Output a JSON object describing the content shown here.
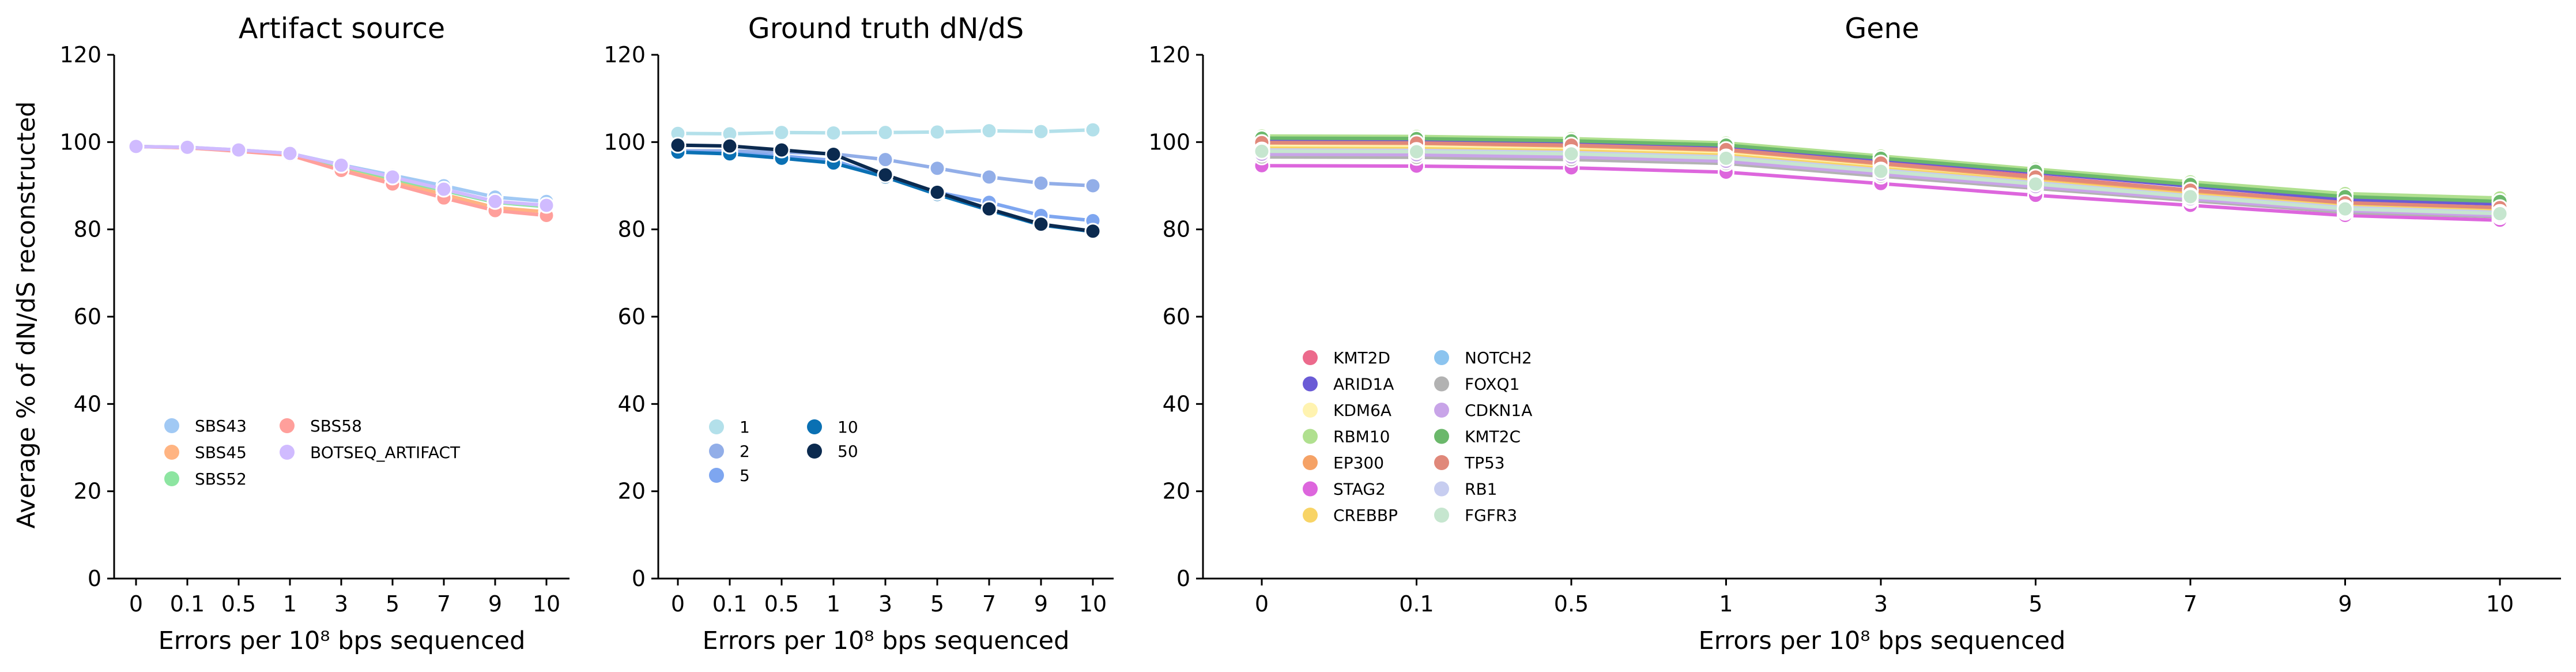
{
  "figure": {
    "ylabel": "Average % of dN/dS reconstructed"
  },
  "chart_data": [
    {
      "type": "line",
      "title": "Artifact source",
      "xlabel": "Errors per 10⁸ bps sequenced",
      "ylabel": "Average % of dN/dS reconstructed",
      "categories": [
        "0",
        "0.1",
        "0.5",
        "1",
        "3",
        "5",
        "7",
        "9",
        "10"
      ],
      "ylim": [
        0,
        120
      ],
      "yticks": [
        0,
        20,
        40,
        60,
        80,
        100,
        120
      ],
      "grid": false,
      "legend_position": "lower-left",
      "series": [
        {
          "name": "SBS43",
          "color": "#a1c9f4",
          "values": [
            99,
            98.8,
            98.2,
            97.4,
            94.8,
            92.4,
            90,
            87.4,
            86.4
          ]
        },
        {
          "name": "SBS45",
          "color": "#ffb482",
          "values": [
            99,
            98.7,
            98,
            97.2,
            94,
            91,
            88,
            85,
            84
          ]
        },
        {
          "name": "SBS52",
          "color": "#8de5a1",
          "values": [
            99,
            98.8,
            98.1,
            97.3,
            94.5,
            91.6,
            88.9,
            86.2,
            85.2
          ]
        },
        {
          "name": "SBS58",
          "color": "#ff9f9b",
          "values": [
            99,
            98.7,
            97.9,
            97,
            93.5,
            90.4,
            87.2,
            84.3,
            83.2
          ]
        },
        {
          "name": "BOTSEQ_ARTIFACT",
          "color": "#d0bbff",
          "values": [
            99,
            98.8,
            98.2,
            97.4,
            94.7,
            92,
            89.2,
            86.4,
            85.5
          ]
        }
      ]
    },
    {
      "type": "line",
      "title": "Ground truth dN/dS",
      "xlabel": "Errors per 10⁸ bps sequenced",
      "categories": [
        "0",
        "0.1",
        "0.5",
        "1",
        "3",
        "5",
        "7",
        "9",
        "10"
      ],
      "ylim": [
        0,
        120
      ],
      "yticks": [
        0,
        20,
        40,
        60,
        80,
        100,
        120
      ],
      "grid": false,
      "legend_position": "lower-left",
      "series": [
        {
          "name": "1",
          "color": "#b3e0ea",
          "values": [
            102,
            101.9,
            102.2,
            102.1,
            102.2,
            102.3,
            102.6,
            102.4,
            102.8
          ]
        },
        {
          "name": "2",
          "color": "#92aee8",
          "values": [
            98,
            98,
            97.7,
            97.3,
            96,
            94,
            92,
            90.6,
            90
          ]
        },
        {
          "name": "5",
          "color": "#7ea6f0",
          "values": [
            97.8,
            97.5,
            96.8,
            95.8,
            92,
            88.5,
            86.2,
            83.2,
            82
          ]
        },
        {
          "name": "10",
          "color": "#0a70b3",
          "values": [
            97.7,
            97.3,
            96.3,
            95.2,
            92,
            88,
            84.4,
            81,
            79.5
          ]
        },
        {
          "name": "50",
          "color": "#0b2a4f",
          "values": [
            99.3,
            99.1,
            98.2,
            97.2,
            92.5,
            88.5,
            84.7,
            81.2,
            79.6
          ]
        }
      ]
    },
    {
      "type": "line",
      "title": "Gene",
      "xlabel": "Errors per 10⁸ bps sequenced",
      "categories": [
        "0",
        "0.1",
        "0.5",
        "1",
        "3",
        "5",
        "7",
        "9",
        "10"
      ],
      "ylim": [
        0,
        120
      ],
      "yticks": [
        0,
        20,
        40,
        60,
        80,
        100,
        120
      ],
      "grid": false,
      "legend_position": "lower-left",
      "series": [
        {
          "name": "KMT2D",
          "color": "#ec6a8c",
          "values": [
            100.3,
            100.2,
            99.6,
            98.6,
            95.3,
            92.2,
            89,
            86.2,
            85
          ]
        },
        {
          "name": "ARID1A",
          "color": "#6a5bd6",
          "values": [
            100.6,
            100.5,
            100,
            99,
            96,
            93,
            89.9,
            86.9,
            85.8
          ]
        },
        {
          "name": "KDM6A",
          "color": "#fff3b0",
          "values": [
            99,
            98.9,
            98.3,
            97.4,
            94.4,
            91.4,
            88.4,
            85.6,
            84.4
          ]
        },
        {
          "name": "RBM10",
          "color": "#b0e08f",
          "values": [
            101.4,
            101.3,
            100.8,
            99.8,
            96.8,
            93.8,
            90.9,
            88.2,
            87.2
          ]
        },
        {
          "name": "EP300",
          "color": "#f5a266",
          "values": [
            99.8,
            99.7,
            99.1,
            98.1,
            95,
            91.8,
            88.7,
            85.8,
            84.6
          ]
        },
        {
          "name": "STAG2",
          "color": "#dd66dd",
          "values": [
            94.6,
            94.5,
            94.1,
            93.1,
            90.5,
            87.8,
            85.5,
            83.2,
            82.1
          ]
        },
        {
          "name": "CREBBP",
          "color": "#f8d466",
          "values": [
            98.6,
            98.5,
            98,
            97,
            94,
            91,
            88,
            85.3,
            84.2
          ]
        },
        {
          "name": "NOTCH2",
          "color": "#8cc4ef",
          "values": [
            97.4,
            97.3,
            96.8,
            95.9,
            93,
            90.1,
            87.3,
            84.5,
            83.4
          ]
        },
        {
          "name": "FOXQ1",
          "color": "#b2b2b2",
          "values": [
            96.6,
            96.5,
            96,
            95.1,
            92.2,
            89.4,
            86.6,
            83.9,
            82.9
          ]
        },
        {
          "name": "CDKN1A",
          "color": "#c8a4e8",
          "values": [
            97.2,
            97.1,
            96.6,
            95.6,
            92.7,
            89.8,
            87,
            84.3,
            83.2
          ]
        },
        {
          "name": "KMT2C",
          "color": "#6bb86b",
          "values": [
            100.9,
            100.8,
            100.3,
            99.3,
            96.3,
            93.3,
            90.3,
            87.5,
            86.4
          ]
        },
        {
          "name": "TP53",
          "color": "#e0887a",
          "values": [
            99.9,
            99.8,
            99.3,
            98.3,
            95.2,
            92,
            89,
            86.1,
            85
          ]
        },
        {
          "name": "RB1",
          "color": "#c7cdf0",
          "values": [
            98.2,
            98.1,
            97.6,
            96.6,
            93.6,
            90.7,
            87.7,
            85,
            83.9
          ]
        },
        {
          "name": "FGFR3",
          "color": "#c6e6cf",
          "values": [
            97.9,
            97.8,
            97.3,
            96.3,
            93.3,
            90.4,
            87.5,
            84.7,
            83.6
          ]
        }
      ]
    }
  ]
}
